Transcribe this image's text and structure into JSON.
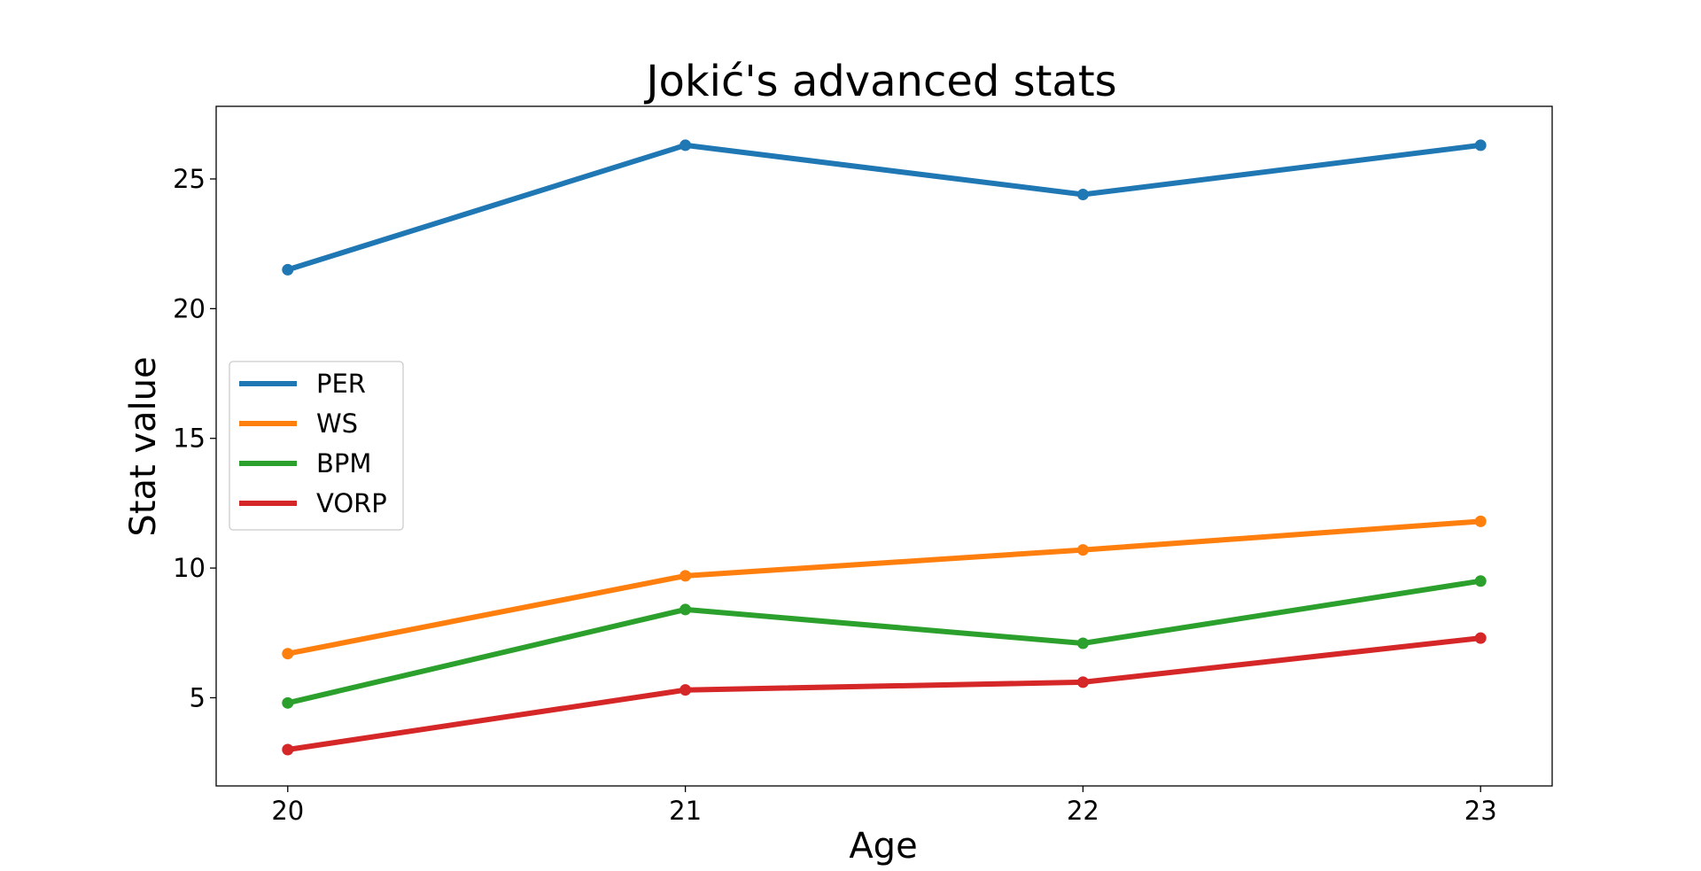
{
  "chart_data": {
    "type": "line",
    "title": "Jokić's advanced stats",
    "xlabel": "Age",
    "ylabel": "Stat value",
    "x": [
      20,
      21,
      22,
      23
    ],
    "xticks": [
      "20",
      "21",
      "22",
      "23"
    ],
    "yticks": [
      5,
      10,
      15,
      20,
      25
    ],
    "xlim": [
      19.82,
      23.18
    ],
    "ylim": [
      1.6,
      27.8
    ],
    "grid": false,
    "legend_position": "center-left",
    "series": [
      {
        "name": "PER",
        "color": "#1f77b4",
        "values": [
          21.5,
          26.3,
          24.4,
          26.3
        ]
      },
      {
        "name": "WS",
        "color": "#ff7f0e",
        "values": [
          6.7,
          9.7,
          10.7,
          11.8
        ]
      },
      {
        "name": "BPM",
        "color": "#2ca02c",
        "values": [
          4.8,
          8.4,
          7.1,
          9.5
        ]
      },
      {
        "name": "VORP",
        "color": "#d62728",
        "values": [
          3.0,
          5.3,
          5.6,
          7.3
        ]
      }
    ]
  }
}
